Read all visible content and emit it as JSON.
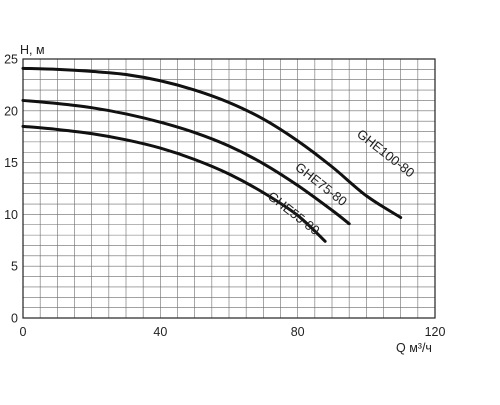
{
  "chart_data": {
    "type": "line",
    "title": "",
    "xlabel": "Q м³/ч",
    "ylabel": "H, м",
    "xlim": [
      0,
      120
    ],
    "ylim": [
      0,
      25
    ],
    "x_ticks": [
      "0",
      "40",
      "80",
      "120"
    ],
    "y_ticks": [
      "0",
      "5",
      "10",
      "15",
      "20",
      "25"
    ],
    "grid": true,
    "legend": "inline",
    "colors": {
      "line": "#111111",
      "grid": "#6b6b6b",
      "axis": "#222222",
      "text": "#222222"
    },
    "series": [
      {
        "name": "GHE100-80",
        "points": [
          [
            0,
            24.1
          ],
          [
            10,
            24.0
          ],
          [
            20,
            23.8
          ],
          [
            30,
            23.5
          ],
          [
            40,
            22.9
          ],
          [
            50,
            22.0
          ],
          [
            60,
            20.8
          ],
          [
            70,
            19.2
          ],
          [
            80,
            17.1
          ],
          [
            90,
            14.6
          ],
          [
            100,
            11.8
          ],
          [
            110,
            9.7
          ]
        ]
      },
      {
        "name": "GHE75-80",
        "points": [
          [
            0,
            21.0
          ],
          [
            10,
            20.7
          ],
          [
            20,
            20.3
          ],
          [
            30,
            19.7
          ],
          [
            40,
            18.9
          ],
          [
            50,
            17.9
          ],
          [
            60,
            16.6
          ],
          [
            70,
            14.9
          ],
          [
            80,
            12.8
          ],
          [
            90,
            10.4
          ],
          [
            95,
            9.1
          ]
        ]
      },
      {
        "name": "GHE55-80",
        "points": [
          [
            0,
            18.5
          ],
          [
            10,
            18.2
          ],
          [
            20,
            17.8
          ],
          [
            30,
            17.2
          ],
          [
            40,
            16.4
          ],
          [
            50,
            15.3
          ],
          [
            60,
            13.9
          ],
          [
            70,
            12.1
          ],
          [
            80,
            9.9
          ],
          [
            88,
            7.4
          ]
        ]
      }
    ]
  }
}
